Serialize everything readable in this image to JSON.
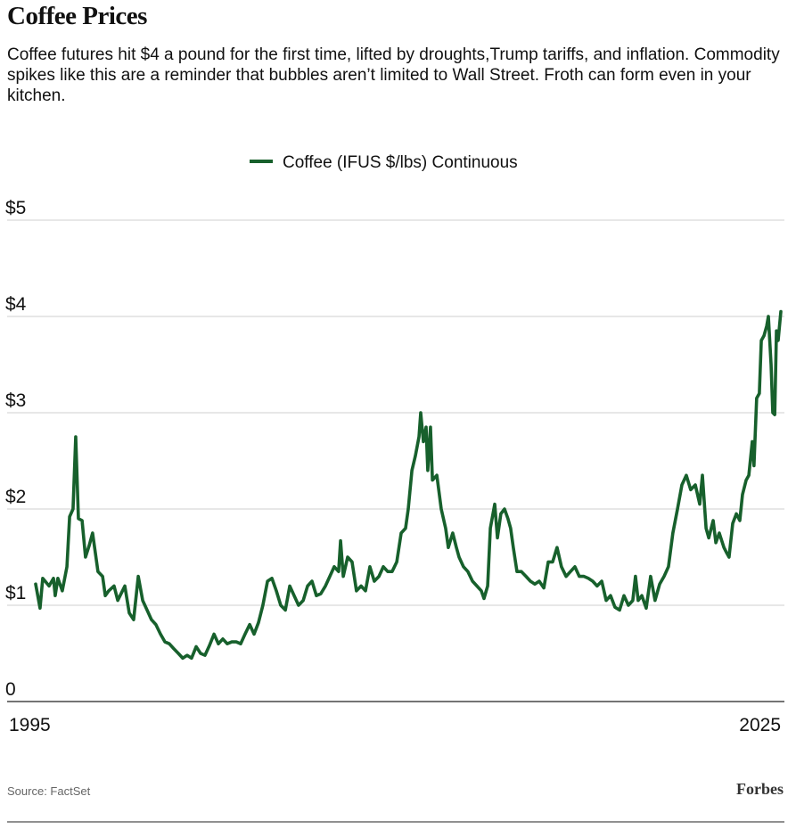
{
  "chart_data": {
    "type": "line",
    "title": "Coffee Prices",
    "subtitle": "Coffee futures hit $4 a pound for the first time, lifted by droughts,Trump tariffs, and inflation. Commodity spikes like this are a reminder that bubbles aren’t limited to Wall Street. Froth can form even in your kitchen.",
    "source": "Source: FactSet",
    "brand": "Forbes",
    "legend": "top",
    "grid": true,
    "xlim": [
      1995,
      2025.5
    ],
    "xticks": [
      1995,
      2025
    ],
    "ylim": [
      0,
      5
    ],
    "yticks": [
      0,
      {
        "value": 1,
        "label": "$1"
      },
      {
        "value": 2,
        "label": "$2"
      },
      {
        "value": 3,
        "label": "$3"
      },
      {
        "value": 4,
        "label": "$4"
      },
      {
        "value": 5,
        "label": "$5"
      }
    ],
    "x": [
      1995.0,
      1995.18,
      1995.29,
      1995.55,
      1995.73,
      1995.8,
      1995.91,
      1996.09,
      1996.28,
      1996.39,
      1996.53,
      1996.64,
      1996.75,
      1996.9,
      1997.04,
      1997.19,
      1997.33,
      1997.55,
      1997.74,
      1997.85,
      1997.99,
      1998.21,
      1998.36,
      1998.65,
      1998.83,
      1999.01,
      1999.2,
      1999.38,
      1999.56,
      1999.74,
      1999.92,
      2000.11,
      2000.29,
      2000.47,
      2000.65,
      2000.84,
      2001.02,
      2001.2,
      2001.38,
      2001.57,
      2001.75,
      2001.93,
      2002.11,
      2002.3,
      2002.48,
      2002.66,
      2002.84,
      2003.03,
      2003.21,
      2003.39,
      2003.57,
      2003.76,
      2003.94,
      2004.12,
      2004.3,
      2004.49,
      2004.67,
      2004.85,
      2005.03,
      2005.22,
      2005.4,
      2005.58,
      2005.76,
      2005.95,
      2006.13,
      2006.31,
      2006.49,
      2006.67,
      2006.86,
      2007.04,
      2007.22,
      2007.4,
      2007.48,
      2007.59,
      2007.77,
      2007.95,
      2008.13,
      2008.32,
      2008.5,
      2008.68,
      2008.86,
      2009.05,
      2009.23,
      2009.41,
      2009.59,
      2009.78,
      2009.96,
      2010.14,
      2010.25,
      2010.4,
      2010.54,
      2010.69,
      2010.76,
      2010.87,
      2010.98,
      2011.05,
      2011.16,
      2011.24,
      2011.42,
      2011.6,
      2011.78,
      2011.89,
      2012.07,
      2012.22,
      2012.33,
      2012.51,
      2012.69,
      2012.88,
      2013.06,
      2013.24,
      2013.35,
      2013.5,
      2013.61,
      2013.79,
      2013.9,
      2014.04,
      2014.19,
      2014.33,
      2014.44,
      2014.55,
      2014.7,
      2014.88,
      2015.07,
      2015.25,
      2015.43,
      2015.61,
      2015.8,
      2015.98,
      2016.16,
      2016.34,
      2016.52,
      2016.71,
      2016.89,
      2017.07,
      2017.25,
      2017.44,
      2017.62,
      2017.8,
      2017.98,
      2018.17,
      2018.35,
      2018.53,
      2018.71,
      2018.9,
      2019.08,
      2019.26,
      2019.44,
      2019.55,
      2019.66,
      2019.81,
      2019.99,
      2020.17,
      2020.35,
      2020.54,
      2020.72,
      2020.9,
      2021.08,
      2021.27,
      2021.45,
      2021.63,
      2021.81,
      2022.0,
      2022.18,
      2022.29,
      2022.44,
      2022.55,
      2022.73,
      2022.84,
      2022.98,
      2023.17,
      2023.27,
      2023.38,
      2023.53,
      2023.68,
      2023.82,
      2023.93,
      2024.08,
      2024.19,
      2024.33,
      2024.4,
      2024.51,
      2024.62,
      2024.7,
      2024.81,
      2024.92,
      2024.99,
      2025.1,
      2025.17,
      2025.25,
      2025.32,
      2025.39,
      2025.5
    ],
    "series": [
      {
        "name": "Coffee (IFUS $/lbs) Continuous",
        "color": "#17602c",
        "values": [
          1.22,
          0.97,
          1.28,
          1.2,
          1.28,
          1.1,
          1.28,
          1.15,
          1.4,
          1.92,
          2.0,
          2.75,
          1.9,
          1.88,
          1.5,
          1.62,
          1.75,
          1.35,
          1.3,
          1.1,
          1.15,
          1.2,
          1.05,
          1.2,
          0.92,
          0.85,
          1.3,
          1.05,
          0.95,
          0.85,
          0.8,
          0.7,
          0.62,
          0.6,
          0.55,
          0.5,
          0.45,
          0.48,
          0.45,
          0.57,
          0.5,
          0.48,
          0.58,
          0.7,
          0.6,
          0.65,
          0.6,
          0.62,
          0.62,
          0.6,
          0.7,
          0.8,
          0.7,
          0.82,
          1.0,
          1.25,
          1.28,
          1.15,
          1.0,
          0.95,
          1.2,
          1.1,
          1.0,
          1.05,
          1.2,
          1.25,
          1.1,
          1.12,
          1.2,
          1.3,
          1.4,
          1.35,
          1.67,
          1.3,
          1.5,
          1.45,
          1.15,
          1.2,
          1.15,
          1.4,
          1.25,
          1.3,
          1.4,
          1.35,
          1.35,
          1.45,
          1.75,
          1.8,
          2.0,
          2.4,
          2.55,
          2.75,
          3.0,
          2.7,
          2.85,
          2.4,
          2.85,
          2.3,
          2.35,
          2.0,
          1.8,
          1.6,
          1.75,
          1.6,
          1.5,
          1.4,
          1.35,
          1.25,
          1.2,
          1.15,
          1.07,
          1.2,
          1.8,
          2.05,
          1.7,
          1.95,
          2.0,
          1.9,
          1.8,
          1.6,
          1.35,
          1.35,
          1.3,
          1.25,
          1.22,
          1.25,
          1.18,
          1.45,
          1.45,
          1.6,
          1.4,
          1.3,
          1.35,
          1.4,
          1.3,
          1.3,
          1.28,
          1.25,
          1.2,
          1.25,
          1.05,
          1.1,
          0.98,
          0.95,
          1.1,
          1.0,
          1.05,
          1.3,
          1.05,
          1.1,
          0.97,
          1.3,
          1.05,
          1.22,
          1.3,
          1.4,
          1.75,
          2.0,
          2.25,
          2.35,
          2.2,
          2.25,
          2.05,
          2.35,
          1.8,
          1.7,
          1.88,
          1.65,
          1.75,
          1.6,
          1.55,
          1.5,
          1.85,
          1.95,
          1.88,
          2.15,
          2.3,
          2.35,
          2.7,
          2.45,
          3.15,
          3.2,
          3.75,
          3.8,
          3.9,
          4.0,
          3.5,
          3.0,
          2.98,
          3.85,
          3.75,
          4.05
        ]
      }
    ]
  }
}
